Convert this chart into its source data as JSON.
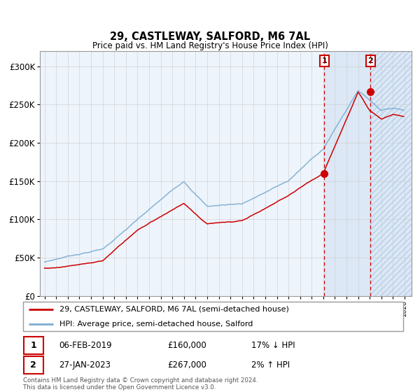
{
  "title": "29, CASTLEWAY, SALFORD, M6 7AL",
  "subtitle": "Price paid vs. HM Land Registry's House Price Index (HPI)",
  "ylim": [
    0,
    320000
  ],
  "yticks": [
    0,
    50000,
    100000,
    150000,
    200000,
    250000,
    300000
  ],
  "ytick_labels": [
    "£0",
    "£50K",
    "£100K",
    "£150K",
    "£200K",
    "£250K",
    "£300K"
  ],
  "transaction1_year": 2019.09,
  "transaction1_price": 160000,
  "transaction2_year": 2023.07,
  "transaction2_price": 267000,
  "legend1": "29, CASTLEWAY, SALFORD, M6 7AL (semi-detached house)",
  "legend2": "HPI: Average price, semi-detached house, Salford",
  "red_color": "#cc0000",
  "blue_color": "#7aadd4",
  "highlight_bg": "#dce8f5",
  "hatch_color": "#b8cfe8",
  "footnote": "Contains HM Land Registry data © Crown copyright and database right 2024.\nThis data is licensed under the Open Government Licence v3.0.",
  "grid_color": "#cccccc",
  "border_color": "#999999",
  "chart_bg": "#eef4fb"
}
